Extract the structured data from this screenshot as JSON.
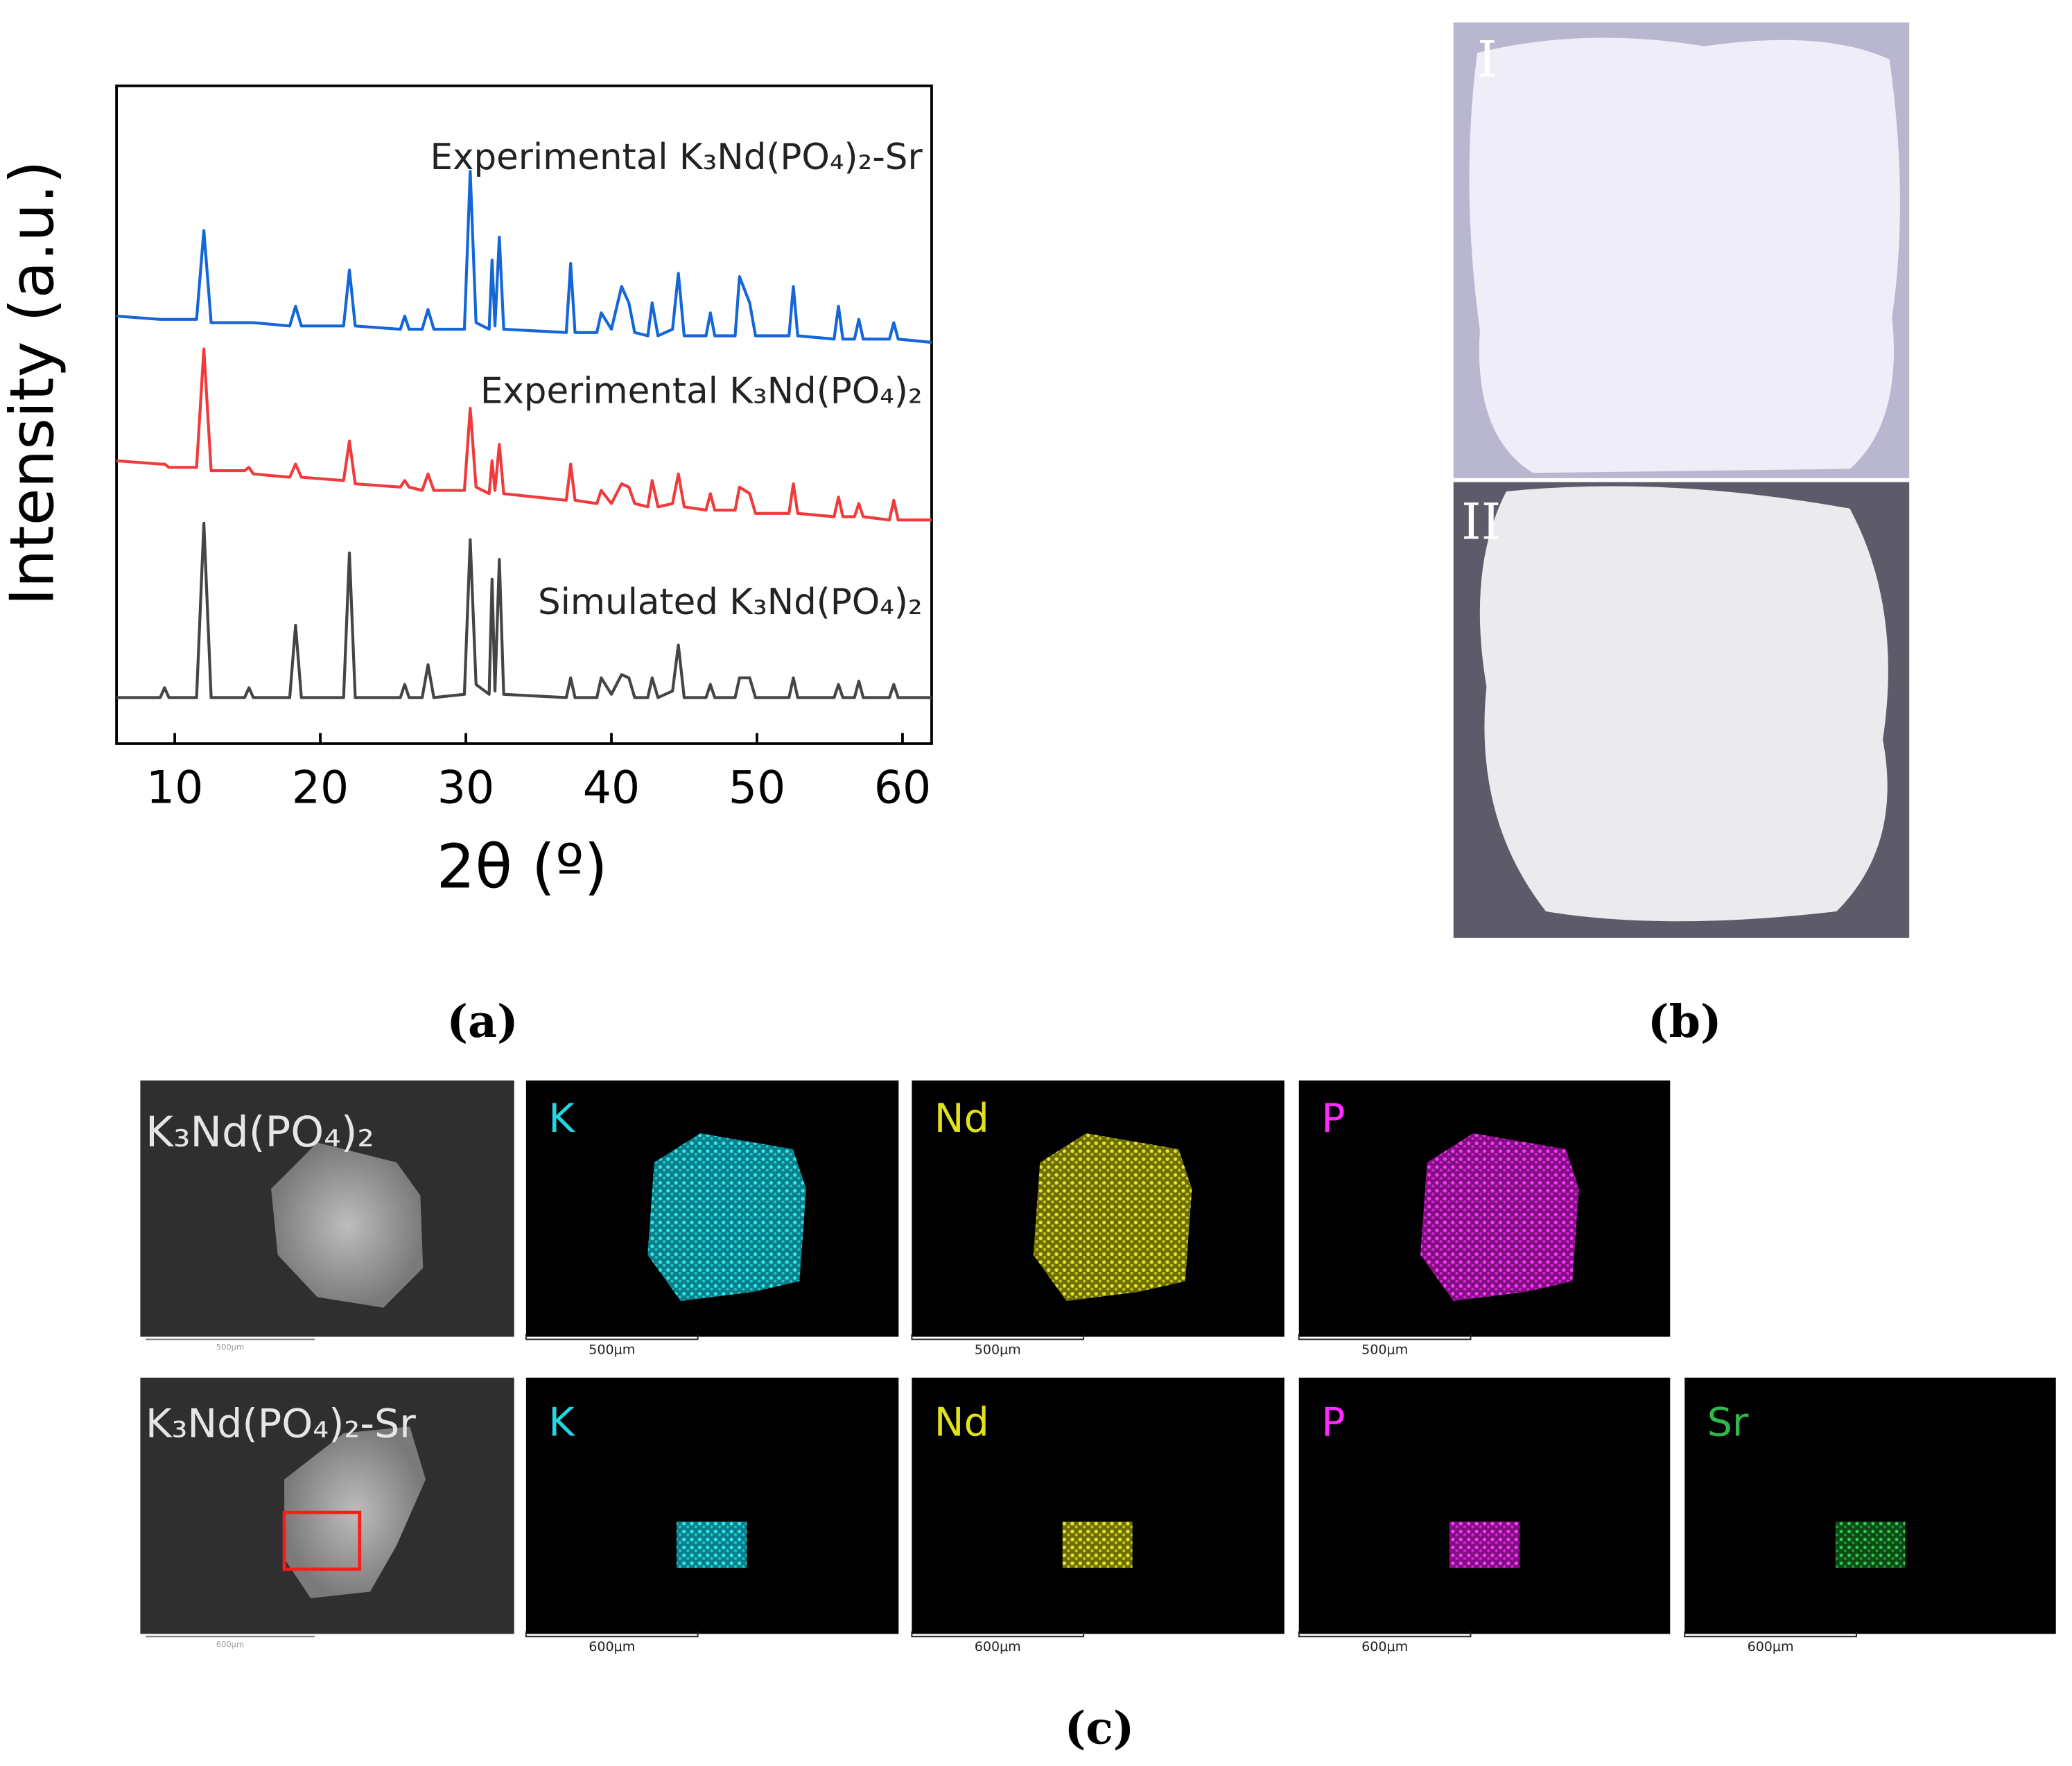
{
  "chart_data": {
    "type": "line",
    "xlabel": "2θ (º)",
    "ylabel": "Intensity (a.u.)",
    "xlim": [
      6,
      62
    ],
    "xticks": [
      10,
      20,
      30,
      40,
      50,
      60
    ],
    "ylim": [
      0,
      100
    ],
    "x": [
      6,
      9.0,
      9.3,
      9.6,
      11.5,
      12.0,
      12.5,
      14.8,
      15.1,
      15.4,
      17.9,
      18.3,
      18.7,
      21.6,
      22.0,
      22.4,
      25.5,
      25.8,
      26.1,
      27.0,
      27.4,
      27.8,
      29.9,
      30.3,
      30.7,
      31.6,
      31.8,
      32.0,
      32.3,
      32.6,
      36.9,
      37.2,
      37.5,
      39.0,
      39.3,
      40.0,
      40.7,
      41.2,
      41.6,
      42.5,
      42.8,
      43.2,
      44.2,
      44.6,
      45.0,
      46.5,
      46.8,
      47.1,
      48.5,
      48.8,
      49.5,
      49.9,
      52.2,
      52.5,
      52.8,
      55.3,
      55.6,
      55.9,
      56.7,
      57.0,
      57.3,
      59.1,
      59.4,
      59.7,
      62
    ],
    "series": [
      {
        "name": "Experimental K₃Nd(PO₄)₂-Sr",
        "color": "#1566d6",
        "values": [
          65,
          64.5,
          64.5,
          64.5,
          64.5,
          78,
          64,
          64,
          64,
          64,
          63.5,
          66.5,
          63.5,
          63.5,
          72,
          63.5,
          63,
          65,
          63,
          63,
          66,
          63,
          63,
          87,
          64,
          63,
          73.5,
          63.5,
          77,
          63,
          62.5,
          73,
          62.5,
          62.5,
          65.5,
          63,
          69.5,
          67,
          62.5,
          62,
          67,
          62,
          63,
          71.5,
          62,
          62,
          65.5,
          62,
          62,
          71,
          67,
          62,
          62,
          69.5,
          62,
          61.5,
          66.5,
          61.5,
          61.5,
          64.5,
          61.5,
          61.5,
          64,
          61.5,
          61
        ]
      },
      {
        "name": "Experimental K₃Nd(PO₄)₂",
        "color": "#ef3b3b",
        "values": [
          43,
          42.5,
          42.5,
          42,
          42,
          60,
          41.5,
          41.5,
          42,
          41,
          40.5,
          42.5,
          40.5,
          40,
          46,
          39.5,
          39,
          40,
          39,
          38.5,
          41,
          38.5,
          38.5,
          51,
          39,
          38,
          43,
          38.5,
          45.5,
          38,
          37,
          42.5,
          37,
          36.5,
          38.5,
          36.5,
          39.5,
          39,
          36.5,
          36,
          40,
          36,
          36.5,
          41,
          36,
          35.5,
          38,
          35.5,
          35.5,
          39,
          38,
          35,
          35,
          39.5,
          35,
          34.5,
          37.5,
          34.5,
          34.5,
          36.5,
          34.5,
          34,
          37,
          34,
          34
        ]
      },
      {
        "name": "Simulated K₃Nd(PO₄)₂",
        "color": "#454545",
        "values": [
          7,
          7,
          8.5,
          7,
          7,
          33.5,
          7,
          7,
          8.5,
          7,
          7,
          18,
          7,
          7,
          29,
          7,
          7,
          9,
          7,
          7,
          12,
          7,
          7.5,
          31,
          9,
          7.5,
          25,
          8,
          28,
          7.5,
          7,
          10,
          7,
          7,
          10,
          7.5,
          10.5,
          10,
          7,
          7,
          10,
          7,
          8,
          15,
          7,
          7,
          9,
          7,
          7,
          10,
          10,
          7,
          7,
          10,
          7,
          7,
          9,
          7,
          7,
          9.5,
          7,
          7,
          9,
          7,
          7
        ]
      }
    ]
  },
  "panel_labels": [
    "(a)",
    "(b)",
    "(c)"
  ],
  "photos": {
    "labels": [
      "I",
      "II"
    ]
  },
  "maps": {
    "rows": [
      {
        "tiles": [
          {
            "label": "K₃Nd(PO₄)₂",
            "scale": "500μm"
          },
          {
            "label": "K",
            "scale": "500μm"
          },
          {
            "label": "Nd",
            "scale": "500μm"
          },
          {
            "label": "P",
            "scale": "500μm"
          }
        ]
      },
      {
        "tiles": [
          {
            "label": "K₃Nd(PO₄)₂-Sr",
            "scale": "600μm"
          },
          {
            "label": "K",
            "scale": "600μm"
          },
          {
            "label": "Nd",
            "scale": "600μm"
          },
          {
            "label": "P",
            "scale": "600μm"
          },
          {
            "label": "Sr",
            "scale": "600μm"
          }
        ]
      }
    ]
  }
}
